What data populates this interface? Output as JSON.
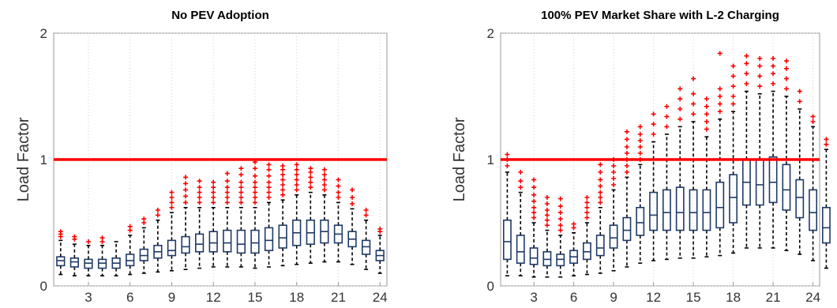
{
  "chart_data": [
    {
      "type": "box",
      "title": "No PEV Adoption",
      "ylabel": "Load Factor",
      "xlabel": "",
      "xlim": [
        0.5,
        24.5
      ],
      "ylim": [
        0,
        2
      ],
      "x_ticks": [
        3,
        6,
        9,
        12,
        15,
        18,
        21,
        24
      ],
      "y_ticks": [
        0,
        1,
        2
      ],
      "reference_line": {
        "y": 1,
        "color": "#ff0000"
      },
      "box_color": "#1f3a68",
      "outlier_color": "#ff0000",
      "boxes": [
        {
          "x": 1,
          "whisker_low": 0.09,
          "q1": 0.16,
          "median": 0.2,
          "q3": 0.23,
          "whisker_high": 0.36,
          "outliers": [
            0.39,
            0.41,
            0.43
          ]
        },
        {
          "x": 2,
          "whisker_low": 0.08,
          "q1": 0.15,
          "median": 0.19,
          "q3": 0.22,
          "whisker_high": 0.33,
          "outliers": [
            0.37,
            0.39
          ]
        },
        {
          "x": 3,
          "whisker_low": 0.08,
          "q1": 0.14,
          "median": 0.18,
          "q3": 0.21,
          "whisker_high": 0.32,
          "outliers": [
            0.35
          ]
        },
        {
          "x": 4,
          "whisker_low": 0.08,
          "q1": 0.14,
          "median": 0.18,
          "q3": 0.21,
          "whisker_high": 0.32,
          "outliers": [
            0.35,
            0.38
          ]
        },
        {
          "x": 5,
          "whisker_low": 0.08,
          "q1": 0.14,
          "median": 0.18,
          "q3": 0.22,
          "whisker_high": 0.35,
          "outliers": []
        },
        {
          "x": 6,
          "whisker_low": 0.09,
          "q1": 0.16,
          "median": 0.2,
          "q3": 0.25,
          "whisker_high": 0.4,
          "outliers": [
            0.44,
            0.47
          ]
        },
        {
          "x": 7,
          "whisker_low": 0.1,
          "q1": 0.2,
          "median": 0.24,
          "q3": 0.29,
          "whisker_high": 0.46,
          "outliers": [
            0.5,
            0.53
          ]
        },
        {
          "x": 8,
          "whisker_low": 0.11,
          "q1": 0.22,
          "median": 0.27,
          "q3": 0.32,
          "whisker_high": 0.52,
          "outliers": [
            0.56,
            0.6
          ]
        },
        {
          "x": 9,
          "whisker_low": 0.12,
          "q1": 0.24,
          "median": 0.28,
          "q3": 0.36,
          "whisker_high": 0.58,
          "outliers": [
            0.62,
            0.66,
            0.7,
            0.74
          ]
        },
        {
          "x": 10,
          "whisker_low": 0.13,
          "q1": 0.26,
          "median": 0.31,
          "q3": 0.39,
          "whisker_high": 0.62,
          "outliers": [
            0.66,
            0.71,
            0.76,
            0.81,
            0.86
          ]
        },
        {
          "x": 11,
          "whisker_low": 0.14,
          "q1": 0.27,
          "median": 0.33,
          "q3": 0.41,
          "whisker_high": 0.62,
          "outliers": [
            0.66,
            0.7,
            0.74,
            0.78,
            0.83
          ]
        },
        {
          "x": 12,
          "whisker_low": 0.15,
          "q1": 0.27,
          "median": 0.34,
          "q3": 0.43,
          "whisker_high": 0.62,
          "outliers": [
            0.66,
            0.7,
            0.74,
            0.78,
            0.82
          ]
        },
        {
          "x": 13,
          "whisker_low": 0.15,
          "q1": 0.27,
          "median": 0.34,
          "q3": 0.44,
          "whisker_high": 0.62,
          "outliers": [
            0.66,
            0.7,
            0.74,
            0.78,
            0.83,
            0.89
          ]
        },
        {
          "x": 14,
          "whisker_low": 0.15,
          "q1": 0.26,
          "median": 0.33,
          "q3": 0.44,
          "whisker_high": 0.62,
          "outliers": [
            0.66,
            0.7,
            0.74,
            0.78,
            0.82,
            0.88,
            0.93
          ]
        },
        {
          "x": 15,
          "whisker_low": 0.14,
          "q1": 0.26,
          "median": 0.34,
          "q3": 0.44,
          "whisker_high": 0.62,
          "outliers": [
            0.66,
            0.7,
            0.74,
            0.78,
            0.82,
            0.87,
            0.93,
            0.98
          ]
        },
        {
          "x": 16,
          "whisker_low": 0.15,
          "q1": 0.28,
          "median": 0.36,
          "q3": 0.46,
          "whisker_high": 0.66,
          "outliers": [
            0.7,
            0.74,
            0.78,
            0.82,
            0.87,
            0.92,
            0.96
          ]
        },
        {
          "x": 17,
          "whisker_low": 0.16,
          "q1": 0.3,
          "median": 0.38,
          "q3": 0.48,
          "whisker_high": 0.68,
          "outliers": [
            0.72,
            0.76,
            0.8,
            0.84,
            0.88,
            0.92,
            0.95
          ]
        },
        {
          "x": 18,
          "whisker_low": 0.17,
          "q1": 0.32,
          "median": 0.42,
          "q3": 0.52,
          "whisker_high": 0.72,
          "outliers": [
            0.76,
            0.8,
            0.84,
            0.88,
            0.92,
            0.96
          ]
        },
        {
          "x": 19,
          "whisker_low": 0.18,
          "q1": 0.33,
          "median": 0.42,
          "q3": 0.52,
          "whisker_high": 0.74,
          "outliers": [
            0.78,
            0.82,
            0.86,
            0.9,
            0.93
          ]
        },
        {
          "x": 20,
          "whisker_low": 0.19,
          "q1": 0.34,
          "median": 0.43,
          "q3": 0.52,
          "whisker_high": 0.72,
          "outliers": [
            0.76,
            0.8,
            0.84,
            0.88,
            0.92
          ]
        },
        {
          "x": 21,
          "whisker_low": 0.19,
          "q1": 0.34,
          "median": 0.41,
          "q3": 0.48,
          "whisker_high": 0.66,
          "outliers": [
            0.7,
            0.74,
            0.79,
            0.84
          ]
        },
        {
          "x": 22,
          "whisker_low": 0.17,
          "q1": 0.31,
          "median": 0.37,
          "q3": 0.43,
          "whisker_high": 0.61,
          "outliers": [
            0.65,
            0.7,
            0.76
          ]
        },
        {
          "x": 23,
          "whisker_low": 0.13,
          "q1": 0.25,
          "median": 0.31,
          "q3": 0.36,
          "whisker_high": 0.52,
          "outliers": [
            0.56,
            0.6
          ]
        },
        {
          "x": 24,
          "whisker_low": 0.1,
          "q1": 0.2,
          "median": 0.24,
          "q3": 0.28,
          "whisker_high": 0.4,
          "outliers": [
            0.43,
            0.45
          ]
        }
      ]
    },
    {
      "type": "box",
      "title": "100% PEV Market Share with L-2 Charging",
      "ylabel": "Load Factor",
      "xlabel": "",
      "xlim": [
        0.5,
        24.5
      ],
      "ylim": [
        0,
        2
      ],
      "x_ticks": [
        3,
        6,
        9,
        12,
        15,
        18,
        21,
        24
      ],
      "y_ticks": [
        0,
        1,
        2
      ],
      "reference_line": {
        "y": 1,
        "color": "#ff0000"
      },
      "box_color": "#1f3a68",
      "outlier_color": "#ff0000",
      "boxes": [
        {
          "x": 1,
          "whisker_low": 0.08,
          "q1": 0.21,
          "median": 0.35,
          "q3": 0.52,
          "whisker_high": 0.9,
          "outliers": [
            0.95,
            1.0,
            1.04
          ]
        },
        {
          "x": 2,
          "whisker_low": 0.08,
          "q1": 0.18,
          "median": 0.27,
          "q3": 0.4,
          "whisker_high": 0.74,
          "outliers": [
            0.78,
            0.83,
            0.9
          ]
        },
        {
          "x": 3,
          "whisker_low": 0.07,
          "q1": 0.17,
          "median": 0.22,
          "q3": 0.3,
          "whisker_high": 0.5,
          "outliers": [
            0.54,
            0.58,
            0.62,
            0.67,
            0.72,
            0.78,
            0.84
          ]
        },
        {
          "x": 4,
          "whisker_low": 0.07,
          "q1": 0.16,
          "median": 0.21,
          "q3": 0.27,
          "whisker_high": 0.44,
          "outliers": [
            0.48,
            0.52,
            0.56,
            0.6,
            0.65,
            0.7
          ]
        },
        {
          "x": 5,
          "whisker_low": 0.07,
          "q1": 0.16,
          "median": 0.21,
          "q3": 0.25,
          "whisker_high": 0.4,
          "outliers": [
            0.44,
            0.48,
            0.53,
            0.58,
            0.63,
            0.69
          ]
        },
        {
          "x": 6,
          "whisker_low": 0.08,
          "q1": 0.18,
          "median": 0.23,
          "q3": 0.28,
          "whisker_high": 0.42,
          "outliers": [
            0.46,
            0.49
          ]
        },
        {
          "x": 7,
          "whisker_low": 0.09,
          "q1": 0.21,
          "median": 0.27,
          "q3": 0.34,
          "whisker_high": 0.5,
          "outliers": [
            0.54,
            0.58,
            0.62,
            0.66,
            0.7
          ]
        },
        {
          "x": 8,
          "whisker_low": 0.1,
          "q1": 0.24,
          "median": 0.3,
          "q3": 0.4,
          "whisker_high": 0.62,
          "outliers": [
            0.66,
            0.7,
            0.74,
            0.79,
            0.84,
            0.9,
            0.96
          ]
        },
        {
          "x": 9,
          "whisker_low": 0.12,
          "q1": 0.3,
          "median": 0.38,
          "q3": 0.48,
          "whisker_high": 0.76,
          "outliers": [
            0.8,
            0.85,
            0.9,
            0.95,
            1.0
          ]
        },
        {
          "x": 10,
          "whisker_low": 0.15,
          "q1": 0.36,
          "median": 0.44,
          "q3": 0.54,
          "whisker_high": 0.86,
          "outliers": [
            0.9,
            0.95,
            1.0,
            1.05,
            1.1,
            1.16,
            1.22
          ]
        },
        {
          "x": 11,
          "whisker_low": 0.18,
          "q1": 0.4,
          "median": 0.5,
          "q3": 0.62,
          "whisker_high": 0.96,
          "outliers": [
            1.0,
            1.05,
            1.1,
            1.15,
            1.2,
            1.26
          ]
        },
        {
          "x": 12,
          "whisker_low": 0.2,
          "q1": 0.44,
          "median": 0.56,
          "q3": 0.74,
          "whisker_high": 1.14,
          "outliers": [
            1.2,
            1.28,
            1.36
          ]
        },
        {
          "x": 13,
          "whisker_low": 0.21,
          "q1": 0.44,
          "median": 0.58,
          "q3": 0.76,
          "whisker_high": 1.2,
          "outliers": [
            1.26,
            1.34,
            1.42
          ]
        },
        {
          "x": 14,
          "whisker_low": 0.22,
          "q1": 0.44,
          "median": 0.58,
          "q3": 0.78,
          "whisker_high": 1.26,
          "outliers": [
            1.32,
            1.4,
            1.48,
            1.56
          ]
        },
        {
          "x": 15,
          "whisker_low": 0.22,
          "q1": 0.44,
          "median": 0.58,
          "q3": 0.76,
          "whisker_high": 1.3,
          "outliers": [
            1.36,
            1.44,
            1.52,
            1.64
          ]
        },
        {
          "x": 16,
          "whisker_low": 0.23,
          "q1": 0.44,
          "median": 0.58,
          "q3": 0.76,
          "whisker_high": 1.18,
          "outliers": [
            1.24,
            1.3,
            1.36,
            1.42,
            1.48
          ]
        },
        {
          "x": 17,
          "whisker_low": 0.24,
          "q1": 0.46,
          "median": 0.62,
          "q3": 0.82,
          "whisker_high": 1.32,
          "outliers": [
            1.38,
            1.44,
            1.5,
            1.56,
            1.84
          ]
        },
        {
          "x": 18,
          "whisker_low": 0.26,
          "q1": 0.5,
          "median": 0.7,
          "q3": 0.88,
          "whisker_high": 1.38,
          "outliers": [
            1.44,
            1.5,
            1.58,
            1.66,
            1.74
          ]
        },
        {
          "x": 19,
          "whisker_low": 0.3,
          "q1": 0.64,
          "median": 0.82,
          "q3": 1.0,
          "whisker_high": 1.54,
          "outliers": [
            1.6,
            1.68,
            1.76,
            1.82
          ]
        },
        {
          "x": 20,
          "whisker_low": 0.3,
          "q1": 0.64,
          "median": 0.8,
          "q3": 1.0,
          "whisker_high": 1.52,
          "outliers": [
            1.58,
            1.66,
            1.74,
            1.8
          ]
        },
        {
          "x": 21,
          "whisker_low": 0.3,
          "q1": 0.66,
          "median": 0.82,
          "q3": 1.02,
          "whisker_high": 1.54,
          "outliers": [
            1.6,
            1.68,
            1.74,
            1.8
          ]
        },
        {
          "x": 22,
          "whisker_low": 0.28,
          "q1": 0.6,
          "median": 0.76,
          "q3": 0.96,
          "whisker_high": 1.5,
          "outliers": [
            1.56,
            1.64,
            1.72,
            1.78
          ]
        },
        {
          "x": 23,
          "whisker_low": 0.25,
          "q1": 0.54,
          "median": 0.7,
          "q3": 0.84,
          "whisker_high": 1.4,
          "outliers": [
            1.46,
            1.54
          ]
        },
        {
          "x": 24,
          "whisker_low": 0.2,
          "q1": 0.44,
          "median": 0.58,
          "q3": 0.76,
          "whisker_high": 1.26,
          "outliers": [
            1.3,
            1.34
          ]
        },
        {
          "x": 25,
          "whisker_low": 0.14,
          "q1": 0.34,
          "median": 0.46,
          "q3": 0.62,
          "whisker_high": 1.08,
          "outliers": [
            1.12,
            1.16
          ]
        }
      ]
    }
  ]
}
